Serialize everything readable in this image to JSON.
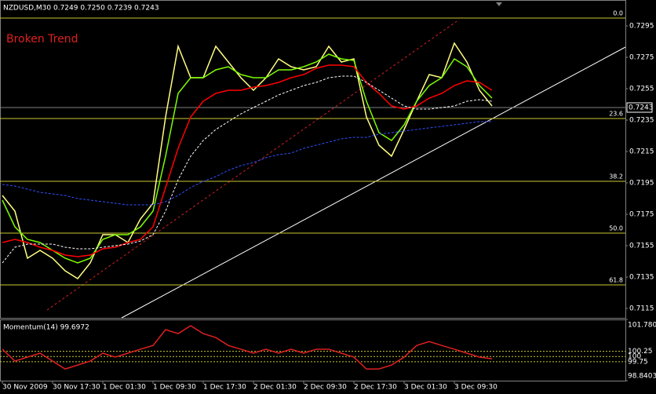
{
  "chart_data": [
    {
      "type": "line",
      "title": "NZDUSD,M30  0.7249 0.7250 0.7239 0.7243",
      "annotation": "Broken Trend",
      "categories": [
        "30 Nov 2009",
        null,
        null,
        null,
        "30 Nov 17:30",
        null,
        null,
        null,
        "1 Dec 01:30",
        null,
        null,
        null,
        "1 Dec 09:30",
        null,
        null,
        null,
        "1 Dec 17:30",
        null,
        null,
        null,
        "2 Dec 01:30",
        null,
        null,
        null,
        "2 Dec 09:30",
        null,
        null,
        null,
        "2 Dec 17:30",
        null,
        null,
        null,
        "3 Dec 01:30",
        null,
        null,
        null,
        "3 Dec 09:30",
        null,
        null,
        null
      ],
      "series": [
        {
          "color": "#ffff80",
          "values": [
            0.7187,
            0.7177,
            0.7147,
            0.7152,
            0.7147,
            0.7139,
            0.7134,
            0.7144,
            0.7162,
            0.7162,
            0.7157,
            0.7172,
            0.7182,
            0.7237,
            0.7282,
            0.7262,
            0.7262,
            0.7282,
            0.7272,
            0.7262,
            0.7254,
            0.7262,
            0.7274,
            0.7269,
            0.7267,
            0.7269,
            0.7282,
            0.7272,
            0.7274,
            0.7237,
            0.7219,
            0.7212,
            0.7229,
            0.7247,
            0.7264,
            0.7262,
            0.7284,
            0.7272,
            0.7254,
            0.7244
          ]
        },
        {
          "color": "#7cfc00",
          "values": [
            0.7184,
            0.7167,
            0.7159,
            0.7157,
            0.7152,
            0.7147,
            0.7144,
            0.7147,
            0.7159,
            0.7162,
            0.7162,
            0.7167,
            0.7177,
            0.7212,
            0.7252,
            0.7262,
            0.7262,
            0.7267,
            0.7269,
            0.7264,
            0.7262,
            0.7262,
            0.7267,
            0.7267,
            0.7269,
            0.7272,
            0.7277,
            0.7274,
            0.7273,
            0.7247,
            0.7227,
            0.7222,
            0.7232,
            0.7247,
            0.7257,
            0.7262,
            0.7274,
            0.7269,
            0.7257,
            0.7249
          ]
        },
        {
          "color": "#ff0000",
          "values": [
            0.7157,
            0.7159,
            0.7157,
            0.7154,
            0.7152,
            0.7149,
            0.7148,
            0.7149,
            0.7153,
            0.7154,
            0.7157,
            0.7159,
            0.7167,
            0.7192,
            0.7217,
            0.7237,
            0.7247,
            0.7252,
            0.7254,
            0.7254,
            0.7256,
            0.7257,
            0.7259,
            0.7262,
            0.7264,
            0.7268,
            0.727,
            0.727,
            0.7269,
            0.7259,
            0.7252,
            0.7244,
            0.7242,
            0.7244,
            0.7249,
            0.7252,
            0.7257,
            0.726,
            0.7259,
            0.7254
          ]
        },
        {
          "color": "#ffffff",
          "dash": true,
          "values": [
            0.7144,
            0.7154,
            0.7156,
            0.7156,
            0.7156,
            0.7154,
            0.7153,
            0.7153,
            0.7154,
            0.7155,
            0.7156,
            0.7158,
            0.7162,
            0.7177,
            0.7197,
            0.7212,
            0.7222,
            0.7229,
            0.7234,
            0.7239,
            0.7243,
            0.7247,
            0.7251,
            0.7254,
            0.7257,
            0.7259,
            0.7262,
            0.7263,
            0.7263,
            0.7259,
            0.7254,
            0.7249,
            0.7244,
            0.7242,
            0.7242,
            0.7243,
            0.7244,
            0.7247,
            0.7248,
            0.7247
          ]
        },
        {
          "color": "#3050ff",
          "dash": true,
          "values": [
            0.7194,
            0.7193,
            0.7191,
            0.7189,
            0.7188,
            0.7187,
            0.7185,
            0.7184,
            0.7183,
            0.7182,
            0.7181,
            0.7181,
            0.7181,
            0.7183,
            0.7187,
            0.7192,
            0.7196,
            0.7199,
            0.7203,
            0.7206,
            0.7208,
            0.7211,
            0.7213,
            0.7214,
            0.7217,
            0.7219,
            0.7221,
            0.7223,
            0.7224,
            0.7224,
            0.7226,
            0.7227,
            0.7228,
            0.7229,
            0.723,
            0.7231,
            0.7232,
            0.7233,
            0.7234,
            0.7234
          ]
        }
      ],
      "ylim": [
        0.7109,
        0.731
      ],
      "yticks": [
        0.7295,
        0.7275,
        0.7255,
        0.7235,
        0.7215,
        0.7195,
        0.7175,
        0.7155,
        0.7135,
        0.7115
      ],
      "fib_levels": [
        {
          "value": 0.73,
          "label": "0.0"
        },
        {
          "value": 0.7236,
          "label": "23.6"
        },
        {
          "value": 0.7196,
          "label": "38.2"
        },
        {
          "value": 0.7163,
          "label": "50.0"
        },
        {
          "value": 0.713,
          "label": "61.8"
        }
      ],
      "fib_color": "#c8c832",
      "last_price": 0.7243
    },
    {
      "type": "line",
      "title": "Momentum(14) 99.6972",
      "series": [
        {
          "color": "#e02020",
          "values": [
            100.35,
            99.78,
            99.97,
            100.16,
            99.78,
            99.4,
            99.59,
            99.78,
            100.16,
            99.97,
            100.16,
            100.35,
            100.53,
            101.29,
            101.1,
            101.48,
            101.1,
            100.91,
            100.53,
            100.35,
            100.16,
            100.35,
            100.16,
            100.35,
            100.16,
            100.35,
            100.35,
            100.16,
            99.97,
            99.4,
            99.4,
            99.59,
            99.97,
            100.53,
            100.72,
            100.53,
            100.35,
            100.16,
            99.97,
            99.89
          ]
        }
      ],
      "ylim": [
        98.8403,
        101.78
      ],
      "yticks": [
        {
          "value": 101.78,
          "label": "101.780"
        },
        100.25,
        100,
        99.75,
        {
          "value": 98.8403,
          "label": "98.8403"
        }
      ]
    }
  ]
}
